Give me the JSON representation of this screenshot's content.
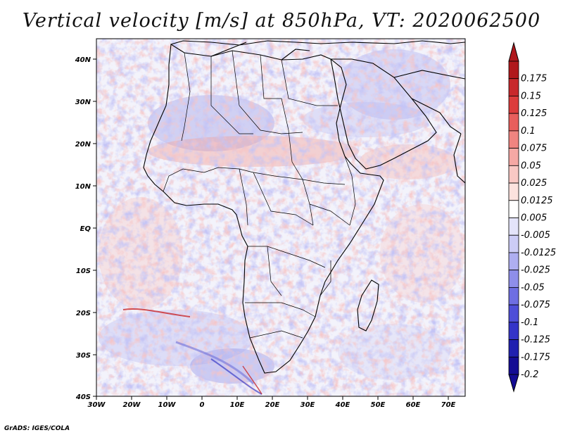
{
  "title": "Vertical velocity [m/s] at 850hPa, VT: 2020062500",
  "credit": "GrADS: IGES/COLA",
  "axes": {
    "lon_labels": [
      "30W",
      "20W",
      "10W",
      "0",
      "10E",
      "20E",
      "30E",
      "40E",
      "50E",
      "60E",
      "70E"
    ],
    "lat_labels": [
      "40N",
      "30N",
      "20N",
      "10N",
      "EQ",
      "10S",
      "20S",
      "30S",
      "40S"
    ]
  },
  "colorbar": {
    "labels": [
      "0.175",
      "0.15",
      "0.125",
      "0.1",
      "0.075",
      "0.05",
      "0.025",
      "0.0125",
      "0.005",
      "-0.005",
      "-0.0125",
      "-0.025",
      "-0.05",
      "-0.075",
      "-0.1",
      "-0.125",
      "-0.175",
      "-0.2"
    ],
    "colors": [
      "#b0181c",
      "#c8282c",
      "#dc3c3c",
      "#e85e5c",
      "#f08480",
      "#f5a8a4",
      "#f9c8c4",
      "#fce2de",
      "#ffffff",
      "#e4e4fa",
      "#ccccf6",
      "#aeaef0",
      "#8e8eea",
      "#6e6ee2",
      "#4e4ed8",
      "#3434c8",
      "#2020b0",
      "#140c94"
    ]
  }
}
